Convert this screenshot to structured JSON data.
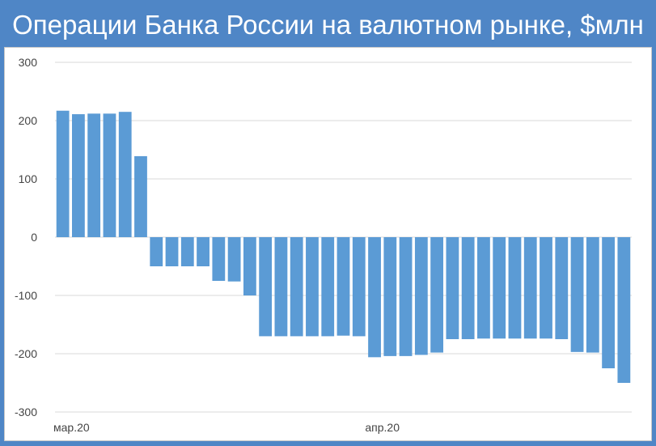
{
  "title": "Операции Банка России на валютном рынке, $млн",
  "colors": {
    "frame": "#4f86c6",
    "bar": "#5b9bd5",
    "grid": "#d9d9d9"
  },
  "chart_data": {
    "type": "bar",
    "title": "Операции Банка России на валютном рынке, $млн",
    "xlabel": "",
    "ylabel": "",
    "ylim": [
      -300,
      300
    ],
    "yticks": [
      300,
      200,
      100,
      0,
      -100,
      -200,
      -300
    ],
    "grid": true,
    "legend": "none",
    "x_tick_labels": [
      {
        "label": "мар.20",
        "index": 0
      },
      {
        "label": "апр.20",
        "index": 20
      }
    ],
    "values": [
      217,
      211,
      212,
      212,
      215,
      139,
      -50,
      -50,
      -50,
      -50,
      -75,
      -76,
      -100,
      -170,
      -170,
      -170,
      -170,
      -170,
      -169,
      -170,
      -206,
      -204,
      -204,
      -202,
      -198,
      -175,
      -175,
      -174,
      -174,
      -174,
      -174,
      -174,
      -175,
      -197,
      -198,
      -225,
      -250
    ]
  }
}
